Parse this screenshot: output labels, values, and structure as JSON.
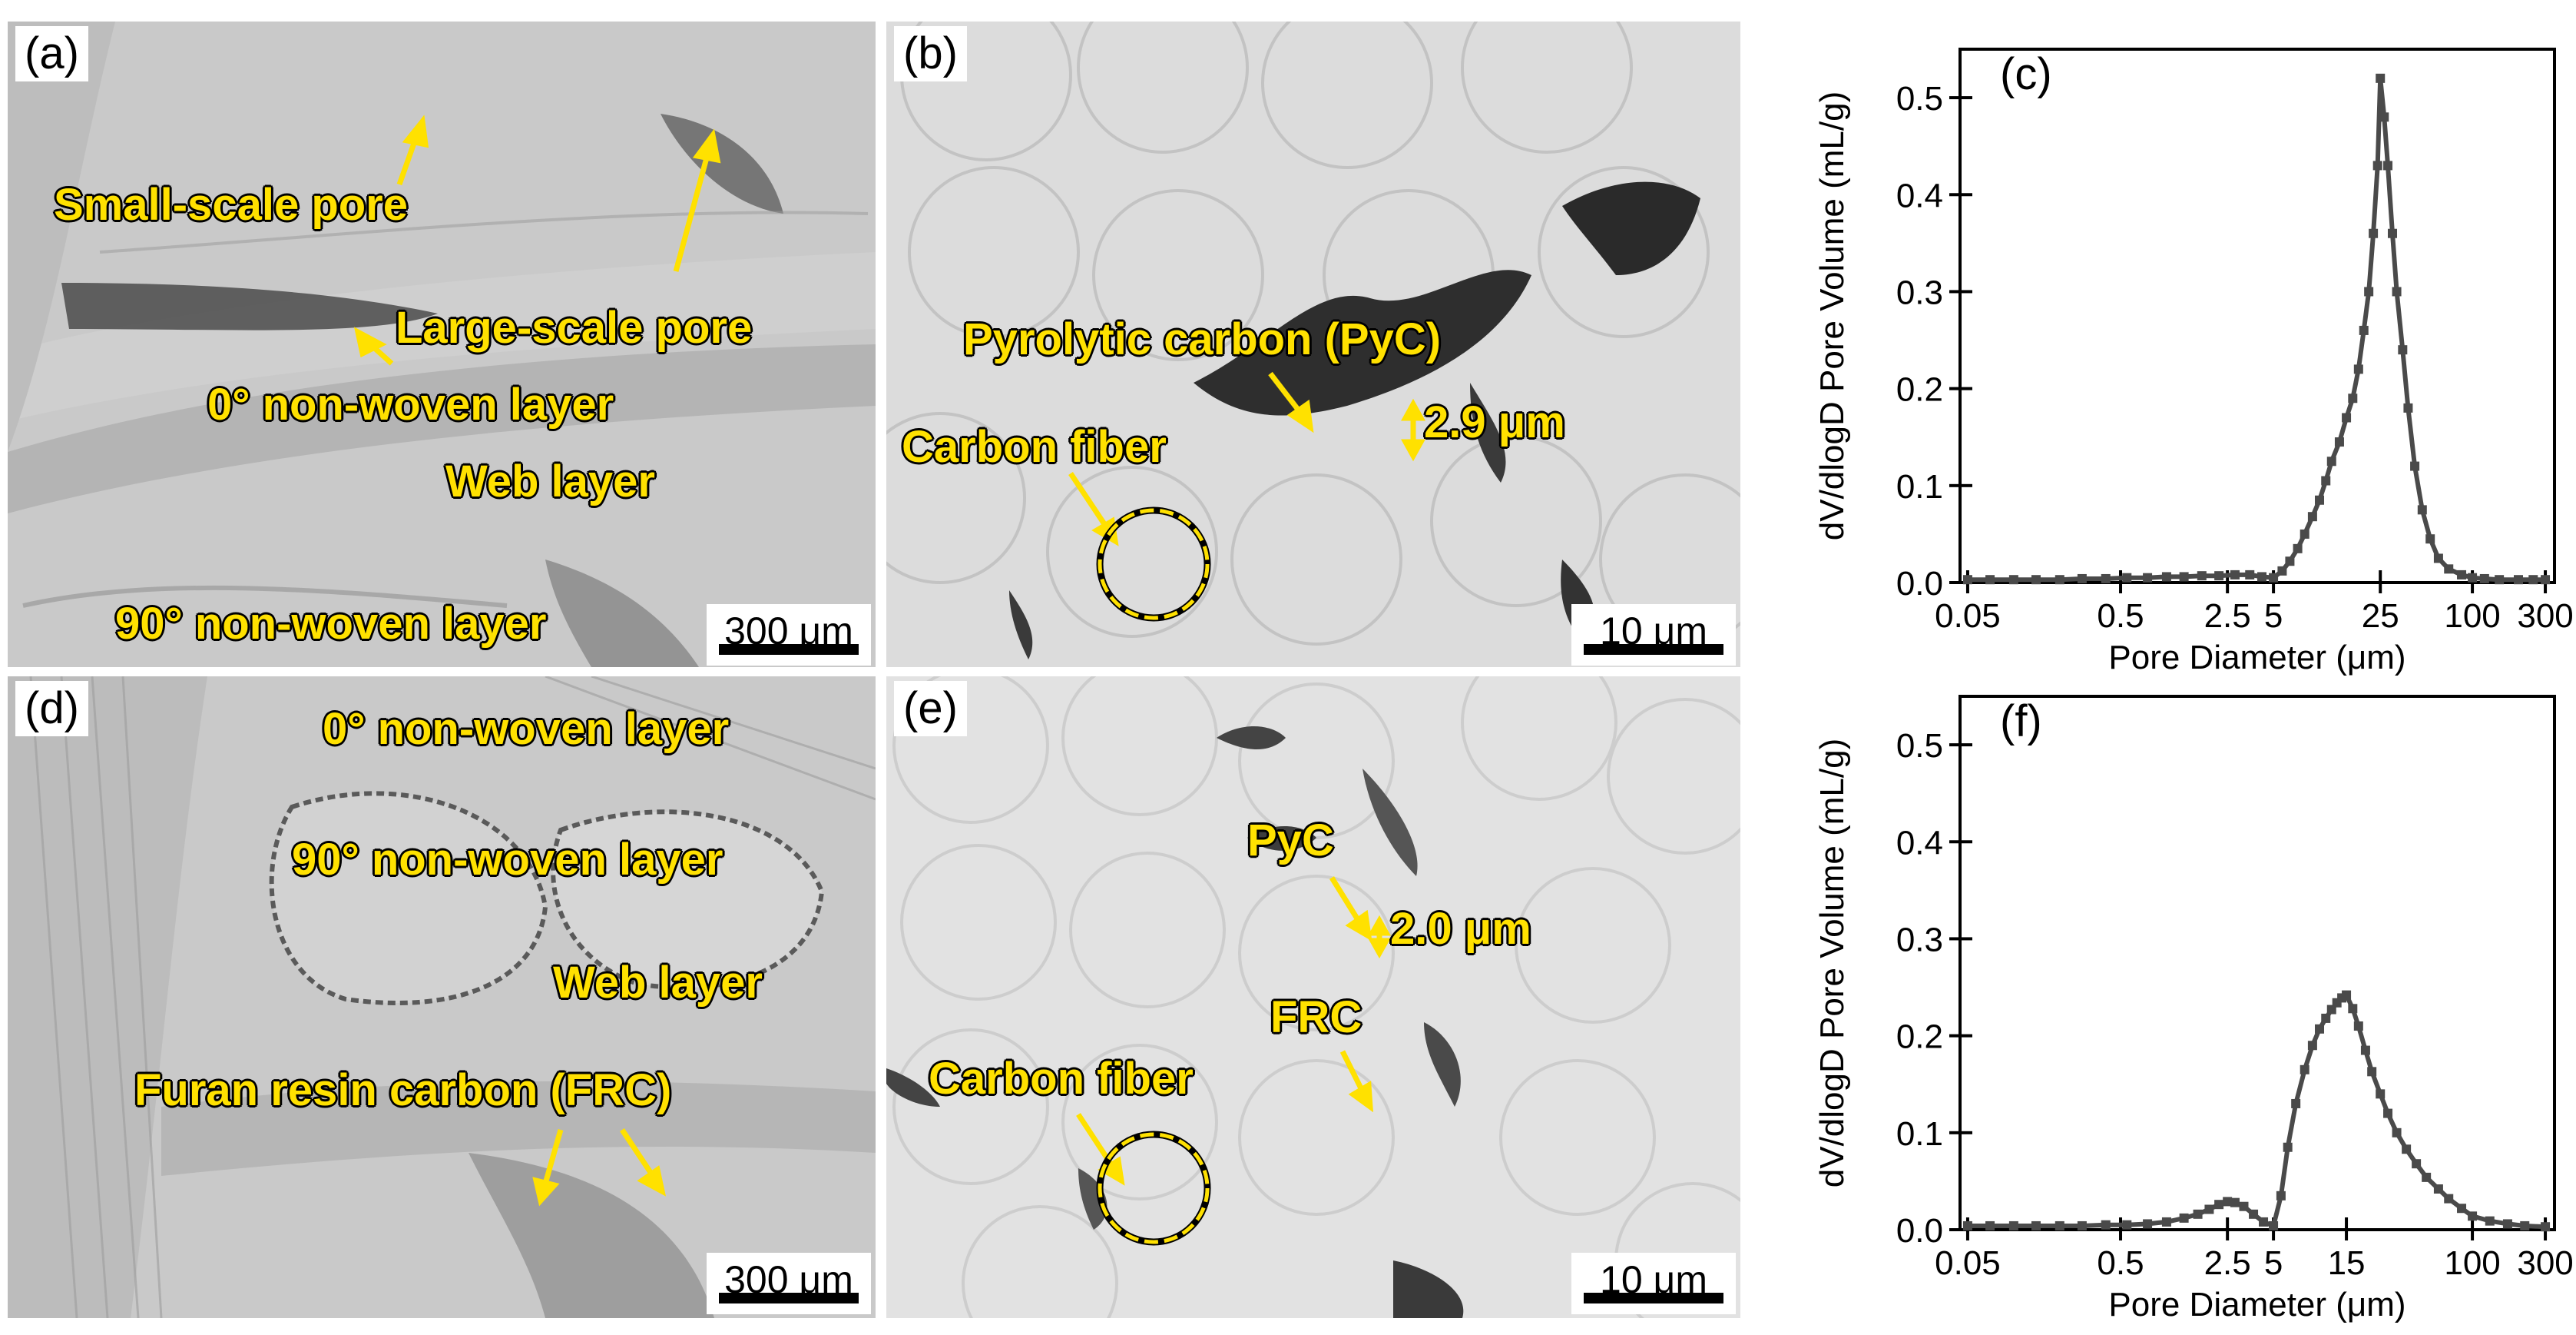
{
  "panels": {
    "a": {
      "label": "(a)",
      "annotations": {
        "small_pore": "Small-scale pore",
        "large_pore": "Large-scale pore",
        "layer_0": "0° non-woven layer",
        "web": "Web layer",
        "layer_90": "90° non-woven layer"
      },
      "scale": "300 μm"
    },
    "b": {
      "label": "(b)",
      "annotations": {
        "pyc": "Pyrolytic carbon (PyC)",
        "thickness": "2.9 μm",
        "fiber": "Carbon fiber"
      },
      "scale": "10 μm"
    },
    "d": {
      "label": "(d)",
      "annotations": {
        "layer_0": "0° non-woven layer",
        "layer_90": "90° non-woven layer",
        "web": "Web layer",
        "frc": "Furan resin carbon (FRC)"
      },
      "scale": "300 μm"
    },
    "e": {
      "label": "(e)",
      "annotations": {
        "pyc": "PyC",
        "thickness": "2.0 μm",
        "frc": "FRC",
        "fiber": "Carbon fiber"
      },
      "scale": "10 μm"
    }
  },
  "chart_data": [
    {
      "panel_label": "(c)",
      "type": "line",
      "xlabel": "Pore Diameter (μm)",
      "ylabel": "dV/dlogD Pore Volume (mL/g)",
      "xscale": "log",
      "xlim": [
        0.05,
        300
      ],
      "ylim": [
        0,
        0.55
      ],
      "xticks": [
        0.05,
        0.5,
        2.5,
        5,
        25,
        100,
        300
      ],
      "xtick_labels": [
        "0.05",
        "0.5",
        "2.5",
        "5",
        "25",
        "100",
        "300"
      ],
      "yticks": [
        0,
        0.1,
        0.2,
        0.3,
        0.4,
        0.5
      ],
      "ytick_labels": [
        "0.0",
        "0.1",
        "0.2",
        "0.3",
        "0.4",
        "0.5"
      ],
      "color": "#4a4a4a",
      "marker": "square",
      "series": [
        {
          "x": [
            0.05,
            0.07,
            0.1,
            0.14,
            0.2,
            0.28,
            0.4,
            0.55,
            0.75,
            1.0,
            1.3,
            1.7,
            2.2,
            2.8,
            3.5,
            4.2,
            5.0,
            5.7,
            6.4,
            7.2,
            8.0,
            9.0,
            10,
            11,
            12,
            13.5,
            15,
            16.5,
            18,
            19.5,
            21,
            22.5,
            24,
            25,
            26.5,
            28,
            30,
            32,
            35,
            38,
            42,
            47,
            53,
            60,
            70,
            85,
            100,
            120,
            150,
            200,
            250,
            300
          ],
          "y": [
            0.003,
            0.003,
            0.003,
            0.003,
            0.003,
            0.004,
            0.004,
            0.005,
            0.005,
            0.006,
            0.006,
            0.007,
            0.007,
            0.008,
            0.008,
            0.006,
            0.005,
            0.012,
            0.022,
            0.035,
            0.05,
            0.068,
            0.085,
            0.105,
            0.125,
            0.145,
            0.17,
            0.19,
            0.22,
            0.26,
            0.3,
            0.36,
            0.43,
            0.52,
            0.48,
            0.43,
            0.36,
            0.3,
            0.24,
            0.18,
            0.12,
            0.075,
            0.045,
            0.025,
            0.014,
            0.008,
            0.005,
            0.004,
            0.003,
            0.003,
            0.003,
            0.003
          ]
        }
      ]
    },
    {
      "panel_label": "(f)",
      "type": "line",
      "xlabel": "Pore Diameter (μm)",
      "ylabel": "dV/dlogD Pore Volume (mL/g)",
      "xscale": "log",
      "xlim": [
        0.05,
        300
      ],
      "ylim": [
        0,
        0.55
      ],
      "xticks": [
        0.05,
        0.5,
        2.5,
        5,
        15,
        100,
        300
      ],
      "xtick_labels": [
        "0.05",
        "0.5",
        "2.5",
        "5",
        "15",
        "100",
        "300"
      ],
      "yticks": [
        0,
        0.1,
        0.2,
        0.3,
        0.4,
        0.5
      ],
      "ytick_labels": [
        "0.0",
        "0.1",
        "0.2",
        "0.3",
        "0.4",
        "0.5"
      ],
      "color": "#4a4a4a",
      "marker": "square",
      "series": [
        {
          "x": [
            0.05,
            0.07,
            0.1,
            0.14,
            0.2,
            0.28,
            0.4,
            0.55,
            0.75,
            1.0,
            1.3,
            1.6,
            1.9,
            2.2,
            2.5,
            2.8,
            3.2,
            3.7,
            4.3,
            5.0,
            5.6,
            6.2,
            7.0,
            8.0,
            9.0,
            10,
            11,
            12,
            13,
            14,
            15,
            16.5,
            18,
            20,
            22,
            25,
            28,
            32,
            37,
            43,
            50,
            60,
            70,
            85,
            100,
            130,
            170,
            220,
            300
          ],
          "y": [
            0.004,
            0.004,
            0.004,
            0.004,
            0.004,
            0.004,
            0.005,
            0.005,
            0.006,
            0.008,
            0.012,
            0.016,
            0.021,
            0.026,
            0.029,
            0.028,
            0.024,
            0.016,
            0.008,
            0.004,
            0.035,
            0.085,
            0.13,
            0.165,
            0.19,
            0.207,
            0.218,
            0.227,
            0.234,
            0.239,
            0.242,
            0.228,
            0.21,
            0.185,
            0.163,
            0.14,
            0.12,
            0.1,
            0.083,
            0.068,
            0.054,
            0.042,
            0.032,
            0.022,
            0.014,
            0.009,
            0.006,
            0.004,
            0.003
          ]
        }
      ]
    }
  ]
}
